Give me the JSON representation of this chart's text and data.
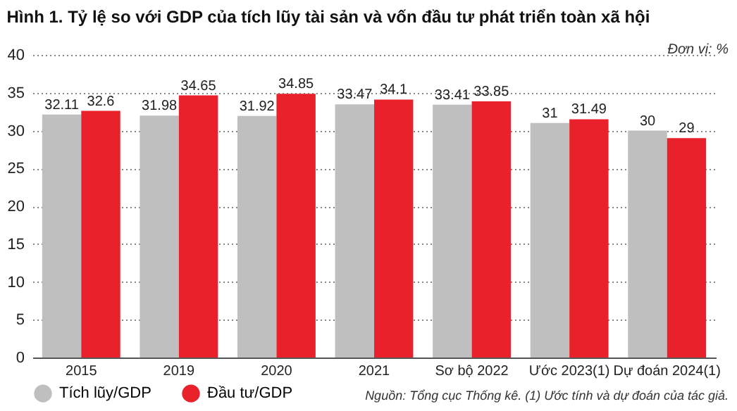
{
  "chart_data": {
    "type": "bar",
    "title": "Hình 1. Tỷ lệ so với GDP của tích lũy tài sản và vốn đầu tư phát triển toàn xã hội",
    "subtitle": "Đơn vị: %",
    "categories": [
      "2015",
      "2019",
      "2020",
      "2021",
      "Sơ bộ 2022",
      "Ước 2023(1)",
      "Dự đoán 2024(1)"
    ],
    "series": [
      {
        "name": "Tích lũy/GDP",
        "color": "#bfbfbf",
        "values": [
          32.11,
          31.98,
          31.92,
          33.47,
          33.41,
          31,
          30
        ]
      },
      {
        "name": "Đầu tư/GDP",
        "color": "#e8212b",
        "values": [
          32.6,
          34.65,
          34.85,
          34.1,
          33.85,
          31.49,
          29
        ]
      }
    ],
    "ylim": [
      0,
      40
    ],
    "yticks": [
      0,
      5,
      10,
      15,
      20,
      25,
      30,
      35,
      40
    ],
    "grid": "y",
    "legend": "bottom left",
    "data_labels": true,
    "annotations": [
      "Nguồn: Tổng cục Thống kê. (1) Ước tính và dự đoán của tác giả."
    ]
  }
}
